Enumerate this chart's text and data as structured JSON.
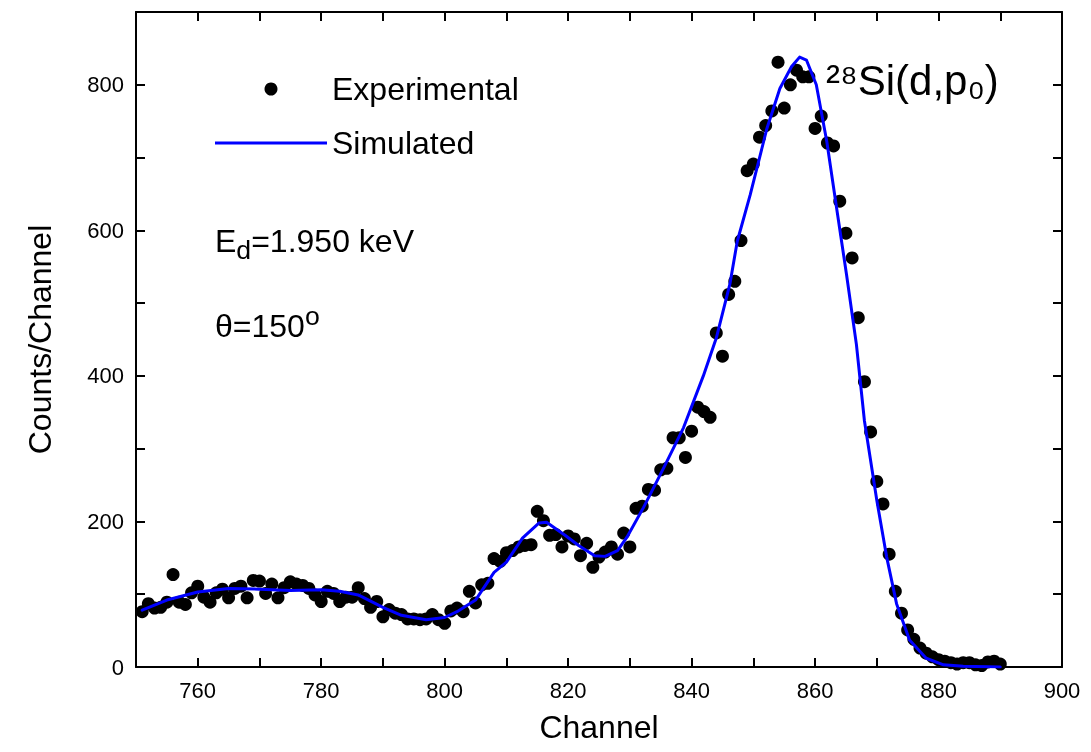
{
  "chart_data": {
    "type": "scatter",
    "xlabel": "Channel",
    "ylabel": "Counts/Channel",
    "xlim": [
      750,
      900
    ],
    "xticks": [
      {
        "value": 750,
        "label": null
      },
      760,
      {
        "value": 770,
        "label": null
      },
      780,
      {
        "value": 790,
        "label": null
      },
      800,
      {
        "value": 810,
        "label": null
      },
      820,
      {
        "value": 830,
        "label": null
      },
      840,
      {
        "value": 850,
        "label": null
      },
      860,
      {
        "value": 870,
        "label": null
      },
      880,
      {
        "value": 890,
        "label": null
      },
      900
    ],
    "ylim": [
      0,
      900
    ],
    "yticks": [
      0,
      {
        "value": 100,
        "label": null
      },
      200,
      {
        "value": 300,
        "label": null
      },
      400,
      {
        "value": 500,
        "label": null
      },
      600,
      {
        "value": 700,
        "label": null
      },
      800,
      {
        "value": 900,
        "label": null
      }
    ],
    "legend": "top left",
    "annotations": [
      "E$_{d}$=1.950 keV",
      "θ=150$^{o}$",
      "²⁸Si(d,p₀)"
    ],
    "series": [
      {
        "name": "Experimental",
        "marker": "circle",
        "color": "#000000",
        "x": [
          751,
          752,
          753,
          754,
          755,
          756,
          757,
          758,
          759,
          760,
          761,
          762,
          763,
          764,
          765,
          766,
          767,
          768,
          769,
          770,
          771,
          772,
          773,
          774,
          775,
          776,
          777,
          778,
          779,
          780,
          781,
          782,
          783,
          784,
          785,
          786,
          787,
          788,
          789,
          790,
          791,
          792,
          793,
          794,
          795,
          796,
          797,
          798,
          799,
          800,
          801,
          802,
          803,
          804,
          805,
          806,
          807,
          808,
          809,
          810,
          811,
          812,
          813,
          814,
          815,
          816,
          817,
          818,
          819,
          820,
          821,
          822,
          823,
          824,
          825,
          826,
          827,
          828,
          829,
          830,
          831,
          832,
          833,
          834,
          835,
          836,
          837,
          838,
          839,
          840,
          841,
          842,
          843,
          844,
          845,
          846,
          847,
          848,
          849,
          850,
          851,
          852,
          853,
          854,
          855,
          856,
          857,
          858,
          859,
          860,
          861,
          862,
          863,
          864,
          865,
          866,
          867,
          868,
          869,
          870,
          871,
          872,
          873,
          874,
          875,
          876,
          877,
          878,
          879,
          880,
          881,
          882,
          883,
          884,
          885,
          886,
          887,
          888,
          889,
          890
        ],
        "values": [
          76,
          87,
          81,
          82,
          89,
          127,
          89,
          86,
          102,
          111,
          96,
          89,
          102,
          107,
          95,
          108,
          111,
          95,
          119,
          118,
          101,
          114,
          95,
          109,
          117,
          114,
          112,
          108,
          99,
          90,
          104,
          101,
          90,
          96,
          96,
          109,
          94,
          82,
          90,
          69,
          79,
          74,
          72,
          66,
          66,
          65,
          66,
          72,
          65,
          60,
          77,
          81,
          76,
          104,
          88,
          113,
          115,
          149,
          145,
          157,
          160,
          165,
          167,
          168,
          214,
          201,
          181,
          182,
          165,
          180,
          176,
          153,
          170,
          137,
          151,
          158,
          165,
          155,
          184,
          165,
          218,
          221,
          244,
          243,
          271,
          273,
          315,
          315,
          288,
          324,
          357,
          351,
          343,
          459,
          427,
          512,
          530,
          586,
          682,
          691,
          728,
          744,
          764,
          831,
          768,
          800,
          820,
          811,
          811,
          740,
          757,
          720,
          716,
          640,
          596,
          562,
          480,
          392,
          323,
          255,
          224,
          155,
          104,
          74,
          51,
          38,
          26,
          19,
          14,
          10,
          8,
          6,
          4,
          6,
          6,
          3,
          2,
          7,
          8,
          4
        ]
      },
      {
        "name": "Simulated",
        "type": "line",
        "marker": "none",
        "line_style": "solid",
        "color": "#0000ff",
        "x": [
          751,
          755,
          760,
          765,
          770,
          775,
          780,
          783,
          786,
          790,
          793,
          797,
          800,
          802,
          805,
          808,
          810,
          812.6,
          815.3,
          816.5,
          819.5,
          821.7,
          824.3,
          826,
          828,
          829.5,
          832.2,
          835.5,
          838.7,
          841.9,
          844,
          846.2,
          847.4,
          849.5,
          852.2,
          854.3,
          856.2,
          857.5,
          858.6,
          860.2,
          861.9,
          863.5,
          865.1,
          866.7,
          868,
          870,
          871.6,
          873.2,
          875.3,
          878,
          880.8,
          884,
          890
        ],
        "values": [
          78,
          92,
          103,
          108,
          107,
          105,
          106,
          104,
          99,
          82,
          71,
          65,
          68,
          76,
          92,
          130,
          144,
          177,
          198,
          199,
          181,
          167,
          153,
          152,
          160,
          178,
          219,
          274,
          329,
          400,
          452,
          526,
          585,
          649,
          740,
          795,
          825,
          838,
          834,
          800,
          722,
          630,
          539,
          443,
          338,
          229,
          151,
          87,
          37,
          12,
          3,
          1,
          0
        ]
      }
    ]
  }
}
